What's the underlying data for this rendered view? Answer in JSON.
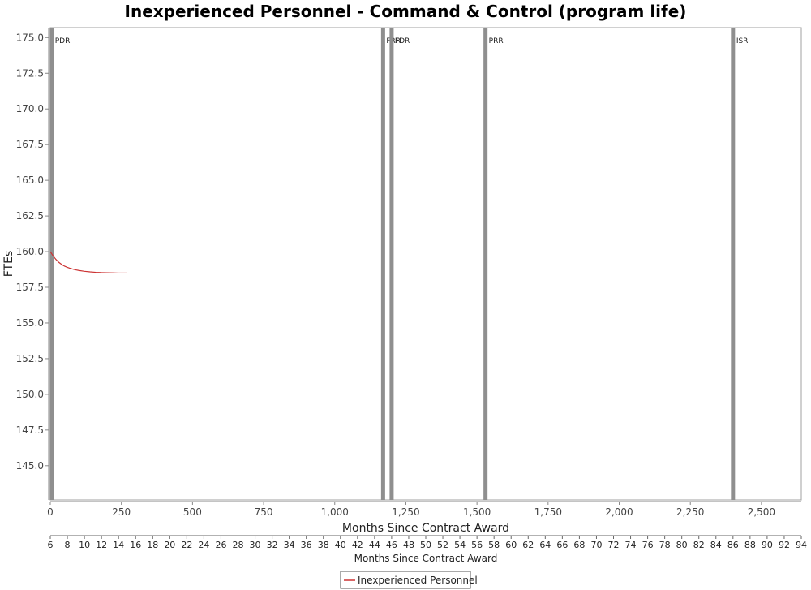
{
  "chart_data": {
    "type": "line",
    "title": "Inexperienced Personnel - Command & Control (program life)",
    "xlabel": "Months Since Contract Award",
    "ylabel": "FTEs",
    "xlim": [
      0,
      2640
    ],
    "ylim": [
      142.6,
      175.7
    ],
    "x_ticks": [
      0,
      250,
      500,
      750,
      1000,
      1250,
      1500,
      1750,
      2000,
      2250,
      2500
    ],
    "x_tick_labels": [
      "0",
      "250",
      "500",
      "750",
      "1,000",
      "1,250",
      "1,500",
      "1,750",
      "2,000",
      "2,250",
      "2,500"
    ],
    "y_ticks": [
      145.0,
      147.5,
      150.0,
      152.5,
      155.0,
      157.5,
      160.0,
      162.5,
      165.0,
      167.5,
      170.0,
      172.5,
      175.0
    ],
    "y_tick_labels": [
      "145.0",
      "147.5",
      "150.0",
      "152.5",
      "155.0",
      "157.5",
      "160.0",
      "162.5",
      "165.0",
      "167.5",
      "170.0",
      "172.5",
      "175.0"
    ],
    "grid": false,
    "legend_position": "bottom-center",
    "series": [
      {
        "name": "Inexperienced Personnel",
        "color": "#cc3333",
        "x": [
          0,
          10,
          20,
          30,
          40,
          50,
          60,
          70,
          80,
          90,
          100,
          120,
          140,
          160,
          180,
          200,
          220,
          240,
          270
        ],
        "y": [
          160.0,
          159.7,
          159.45,
          159.25,
          159.1,
          158.98,
          158.9,
          158.83,
          158.77,
          158.72,
          158.68,
          158.62,
          158.58,
          158.55,
          158.53,
          158.52,
          158.51,
          158.5,
          158.5
        ]
      }
    ],
    "milestones": [
      {
        "label": "PDR",
        "x": 5
      },
      {
        "label": "FRR",
        "x": 1170
      },
      {
        "label": "FDR",
        "x": 1200
      },
      {
        "label": "PRR",
        "x": 1530
      },
      {
        "label": "ISR",
        "x": 2400
      }
    ],
    "milestone_color": "#8f8f8f",
    "secondary_axis": {
      "label": "Months Since Contract Award",
      "range": [
        6,
        94
      ],
      "ticks": [
        6,
        8,
        10,
        12,
        14,
        16,
        18,
        20,
        22,
        24,
        26,
        28,
        30,
        32,
        34,
        36,
        38,
        40,
        42,
        44,
        46,
        48,
        50,
        52,
        54,
        56,
        58,
        60,
        62,
        64,
        66,
        68,
        70,
        72,
        74,
        76,
        78,
        80,
        82,
        84,
        86,
        88,
        90,
        92,
        94
      ]
    }
  }
}
